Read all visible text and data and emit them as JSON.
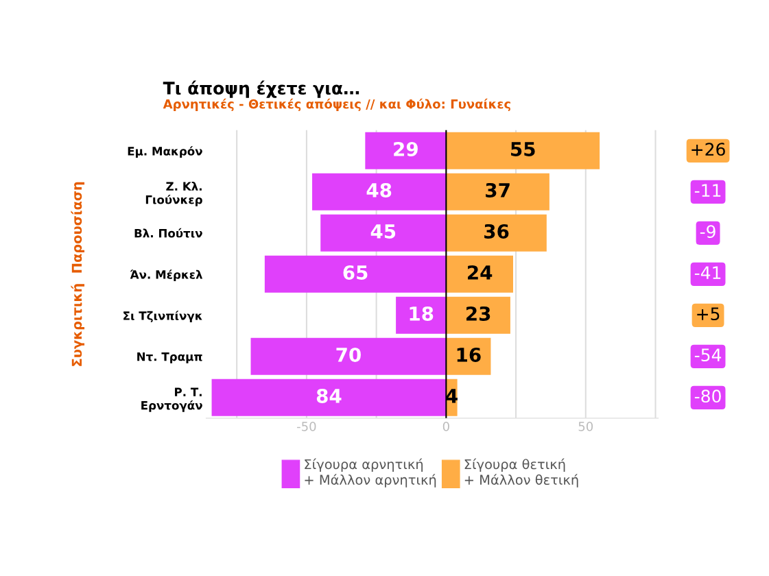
{
  "chart_data": {
    "type": "bar",
    "orientation": "horizontal",
    "title": "Τι άποψη έχετε για…",
    "subtitle": "Αρνητικές - Θετικές απόψεις // και Φύλο: Γυναίκες",
    "ylabel": "Συγκριτική  Παρουσίαση",
    "categories": [
      "Εμ. Μακρόν",
      "Ζ. Κλ.\nΓιούνκερ",
      "Βλ. Πούτιν",
      "Άν. Μέρκελ",
      "Σι Τζινπίνγκ",
      "Ντ. Τραμπ",
      "Ρ. Τ.\nΕρντογάν"
    ],
    "series": [
      {
        "name": "Σίγουρα αρνητική\n+ Μάλλον αρνητική",
        "color": "#e040fb",
        "values": [
          29,
          48,
          45,
          65,
          18,
          70,
          84
        ],
        "base": [
          -29,
          -48,
          -45,
          -65,
          -18,
          -70,
          -84
        ],
        "value_labels": [
          "29",
          "48",
          "45",
          "65",
          "18",
          "70",
          "84"
        ]
      },
      {
        "name": "Σίγουρα θετική\n+ Μάλλον θετική",
        "color": "#ffad45",
        "values": [
          55,
          37,
          36,
          24,
          23,
          16,
          4
        ],
        "value_labels": [
          "55",
          "37",
          "36",
          "24",
          "23",
          "16",
          "4"
        ]
      }
    ],
    "annotations": [
      "+26",
      "-11",
      "-9",
      "-41",
      "+5",
      "-54",
      "-80"
    ],
    "xlim": [
      -86,
      76
    ],
    "xticks": [
      {
        "value": -75,
        "label": null
      },
      -50,
      {
        "value": -25,
        "label": null
      },
      0,
      {
        "value": 25,
        "label": null
      },
      50,
      {
        "value": 75,
        "label": null
      }
    ],
    "grid": "x",
    "ref_lines": [
      {
        "axis": "x",
        "value": 0,
        "color": "#000000"
      }
    ],
    "legend": "bottom"
  }
}
